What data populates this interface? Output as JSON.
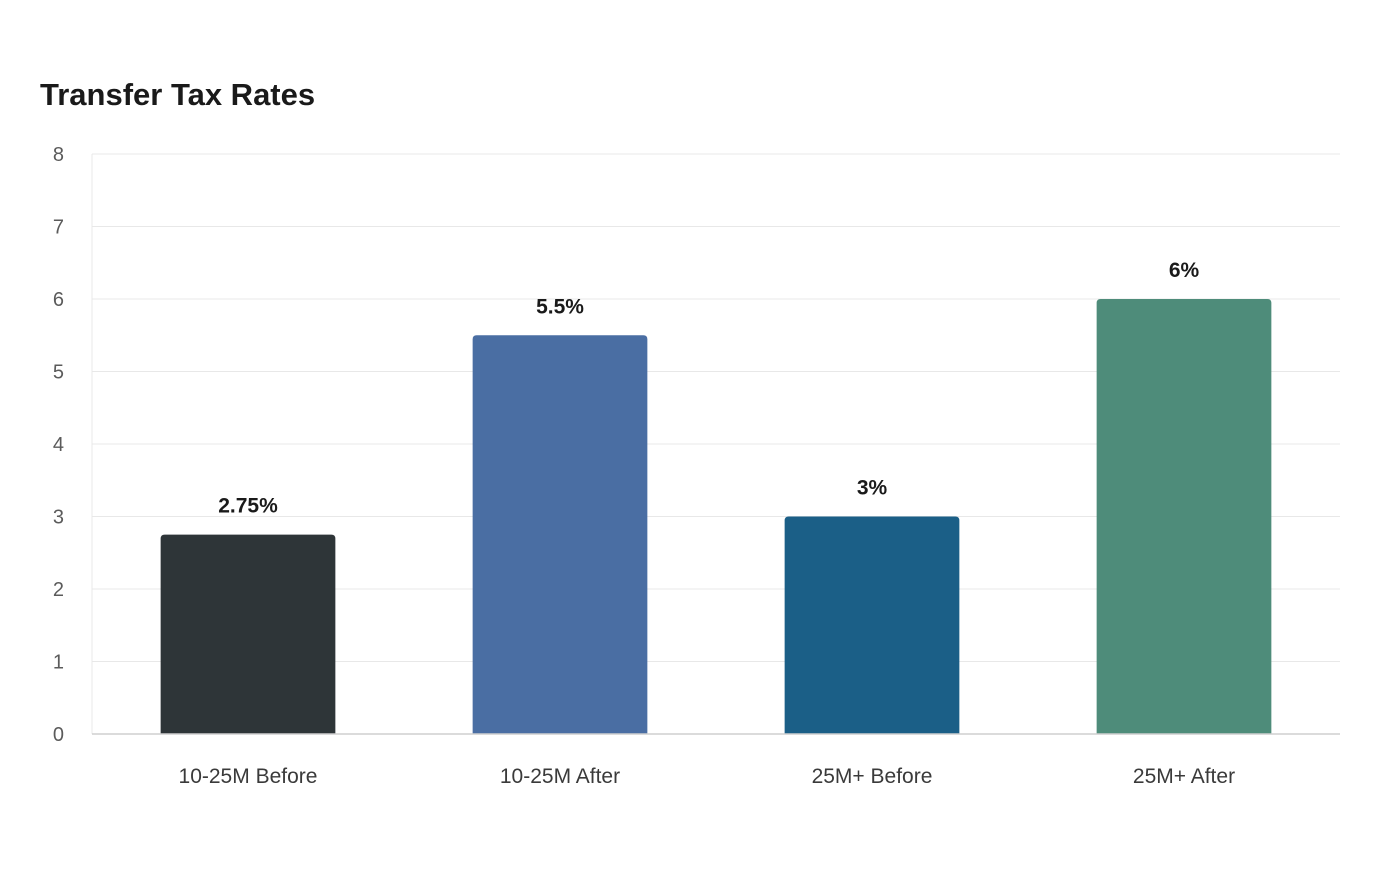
{
  "chart_data": {
    "type": "bar",
    "title": "Transfer Tax Rates",
    "categories": [
      "10-25M Before",
      "10-25M After",
      "25M+ Before",
      "25M+ After"
    ],
    "values": [
      2.75,
      5.5,
      3,
      6
    ],
    "data_labels": [
      "2.75%",
      "5.5%",
      "3%",
      "6%"
    ],
    "bar_colors": [
      "#2e3538",
      "#4a6ea3",
      "#1b5f87",
      "#4e8c7a"
    ],
    "xlabel": "",
    "ylabel": "",
    "ylim": [
      0,
      8
    ],
    "yticks": [
      0,
      1,
      2,
      3,
      4,
      5,
      6,
      7,
      8
    ],
    "grid": true,
    "legend": "none"
  }
}
